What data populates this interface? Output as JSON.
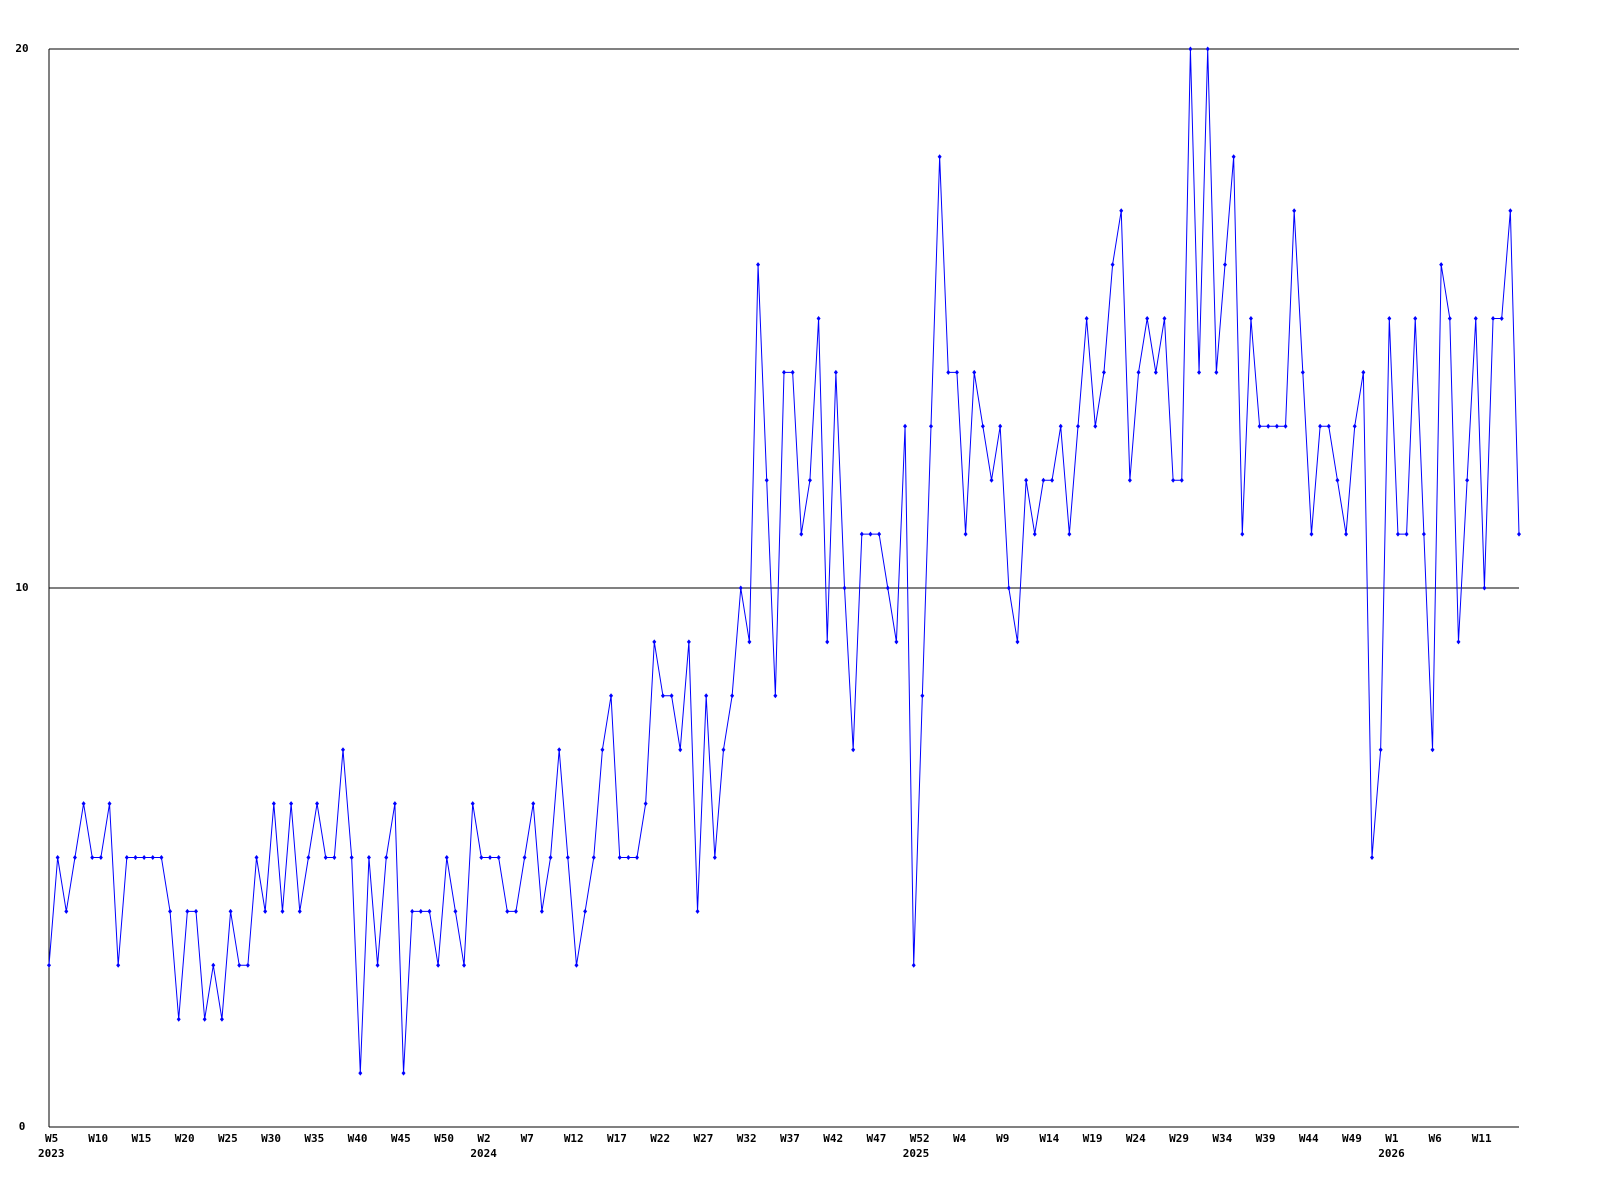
{
  "chart_data": {
    "type": "line",
    "color": "#0000ff",
    "grid": true,
    "ylim": [
      0,
      20
    ],
    "yticks": [
      0,
      10,
      20
    ],
    "values": [
      3,
      5,
      4,
      5,
      6,
      5,
      5,
      6,
      3,
      5,
      5,
      5,
      5,
      5,
      4,
      2,
      4,
      4,
      2,
      3,
      2,
      4,
      3,
      3,
      5,
      4,
      6,
      4,
      6,
      4,
      5,
      6,
      5,
      5,
      7,
      5,
      1,
      5,
      3,
      5,
      6,
      1,
      4,
      4,
      4,
      3,
      5,
      4,
      3,
      6,
      5,
      5,
      5,
      4,
      4,
      5,
      6,
      4,
      5,
      7,
      5,
      3,
      4,
      5,
      7,
      8,
      5,
      5,
      5,
      6,
      9,
      8,
      8,
      7,
      9,
      4,
      8,
      5,
      7,
      8,
      10,
      9,
      16,
      12,
      8,
      14,
      14,
      11,
      12,
      15,
      9,
      14,
      10,
      7,
      11,
      11,
      11,
      10,
      9,
      13,
      3,
      8,
      13,
      18,
      14,
      14,
      11,
      14,
      13,
      12,
      13,
      10,
      9,
      12,
      11,
      12,
      12,
      13,
      11,
      13,
      15,
      13,
      14,
      16,
      17,
      12,
      14,
      15,
      14,
      15,
      12,
      12,
      20,
      14,
      20,
      14,
      16,
      18,
      11,
      15,
      13,
      13,
      13,
      13,
      17,
      14,
      11,
      13,
      13,
      12,
      11,
      13,
      14,
      5,
      7,
      15,
      11,
      11,
      15,
      11,
      7,
      16,
      15,
      9,
      12,
      15,
      10,
      15,
      15,
      17,
      11
    ],
    "categories": [
      "W5",
      null,
      null,
      null,
      null,
      "W10",
      null,
      null,
      null,
      null,
      "W15",
      null,
      null,
      null,
      null,
      "W20",
      null,
      null,
      null,
      null,
      "W25",
      null,
      null,
      null,
      null,
      "W30",
      null,
      null,
      null,
      null,
      "W35",
      null,
      null,
      null,
      null,
      "W40",
      null,
      null,
      null,
      null,
      "W45",
      null,
      null,
      null,
      null,
      "W50",
      null,
      null,
      null,
      null,
      "W2",
      null,
      null,
      null,
      null,
      "W7",
      null,
      null,
      null,
      null,
      "W12",
      null,
      null,
      null,
      null,
      "W17",
      null,
      null,
      null,
      null,
      "W22",
      null,
      null,
      null,
      null,
      "W27",
      null,
      null,
      null,
      null,
      "W32",
      null,
      null,
      null,
      null,
      "W37",
      null,
      null,
      null,
      null,
      "W42",
      null,
      null,
      null,
      null,
      "W47",
      null,
      null,
      null,
      null,
      "W52",
      null,
      null,
      null,
      null,
      "W4",
      null,
      null,
      null,
      null,
      "W9",
      null,
      null,
      null,
      null,
      "W14",
      null,
      null,
      null,
      null,
      "W19",
      null,
      null,
      null,
      null,
      "W24",
      null,
      null,
      null,
      null,
      "W29",
      null,
      null,
      null,
      null,
      "W34",
      null,
      null,
      null,
      null,
      "W39",
      null,
      null,
      null,
      null,
      "W44",
      null,
      null,
      null,
      null,
      "W49",
      null,
      null,
      null,
      null,
      "W1",
      null,
      null,
      null,
      null,
      "W6",
      null,
      null,
      null,
      null,
      "W11",
      null,
      null,
      null,
      null,
      null
    ],
    "category_years": [
      "2023",
      null,
      null,
      null,
      null,
      null,
      null,
      null,
      null,
      null,
      null,
      null,
      null,
      null,
      null,
      null,
      null,
      null,
      null,
      null,
      null,
      null,
      null,
      null,
      null,
      null,
      null,
      null,
      null,
      null,
      null,
      null,
      null,
      null,
      null,
      null,
      null,
      null,
      null,
      null,
      null,
      null,
      null,
      null,
      null,
      null,
      null,
      null,
      null,
      null,
      "2024",
      null,
      null,
      null,
      null,
      null,
      null,
      null,
      null,
      null,
      null,
      null,
      null,
      null,
      null,
      null,
      null,
      null,
      null,
      null,
      null,
      null,
      null,
      null,
      null,
      null,
      null,
      null,
      null,
      null,
      null,
      null,
      null,
      null,
      null,
      null,
      null,
      null,
      null,
      null,
      null,
      null,
      null,
      null,
      null,
      null,
      null,
      null,
      null,
      null,
      "2025",
      null,
      null,
      null,
      null,
      null,
      null,
      null,
      null,
      null,
      null,
      null,
      null,
      null,
      null,
      null,
      null,
      null,
      null,
      null,
      null,
      null,
      null,
      null,
      null,
      null,
      null,
      null,
      null,
      null,
      null,
      null,
      null,
      null,
      null,
      null,
      null,
      null,
      null,
      null,
      null,
      null,
      null,
      null,
      null,
      null,
      null,
      null,
      null,
      null,
      null,
      null,
      null,
      null,
      null,
      "2026",
      null,
      null,
      null,
      null,
      null,
      null,
      null,
      null,
      null,
      null,
      null,
      null,
      null,
      null,
      null
    ]
  }
}
